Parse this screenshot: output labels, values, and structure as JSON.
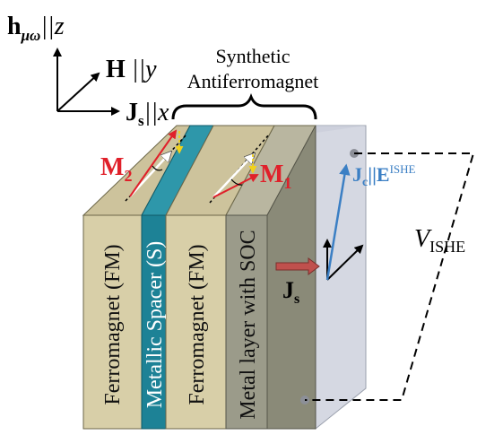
{
  "axes": {
    "z_label": {
      "main": "h",
      "sub": "μω",
      "rest": "||z"
    },
    "y_label": {
      "main": "H",
      "rest": " ||y"
    },
    "x_label": {
      "main": "J",
      "sub": "s",
      "rest": "||x"
    }
  },
  "synthetic_afm": {
    "line1": "Synthetic",
    "line2": "Antiferromagnet"
  },
  "layers": {
    "fm1": "Ferromagnet (FM)",
    "spacer": "Metallic Spacer (S)",
    "fm2": "Ferromagnet (FM)",
    "soc": "Metal layer with SOC"
  },
  "magnetization": {
    "m2": {
      "main": "M",
      "sub": "2"
    },
    "m1": {
      "main": "M",
      "sub": "1"
    }
  },
  "spin_current": {
    "main": "J",
    "sub": "s"
  },
  "charge_current": {
    "main": "J",
    "sub": "c",
    "rest": "||E",
    "sup": "ISHE"
  },
  "voltage": {
    "main": "V",
    "sub": "ISHE"
  },
  "colors": {
    "fm_front": "#d8cfa8",
    "fm_top": "#cdc39c",
    "spacer_front": "#1d8296",
    "spacer_top": "#2e97aa",
    "soc_front": "#9b9b8a",
    "soc_side": "#8a8a78",
    "detector_plane": "#d5d8e2",
    "magnetization": "#e0202a",
    "charge_current": "#3b7fc4",
    "spin_current_arrow": "#c0504d"
  }
}
